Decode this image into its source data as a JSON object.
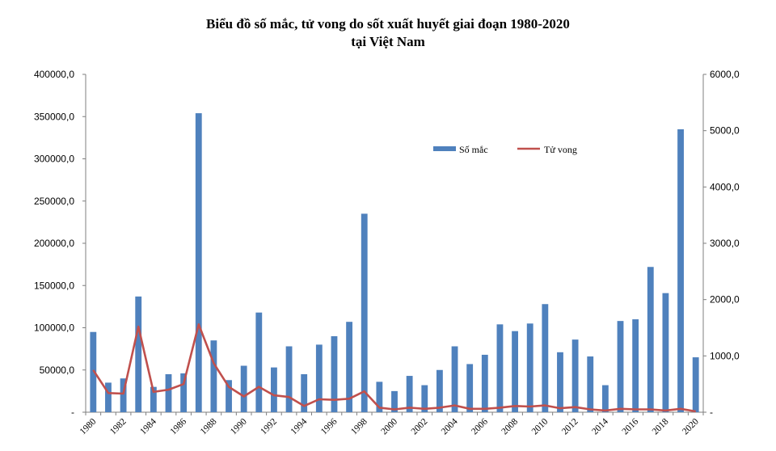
{
  "chart_data": {
    "type": "bar",
    "title": "Biểu đồ số mắc, tử vong do sốt xuất huyết giai đoạn 1980-2020",
    "subtitle": "tại Việt Nam",
    "x": [
      1980,
      1981,
      1982,
      1983,
      1984,
      1985,
      1986,
      1987,
      1988,
      1989,
      1990,
      1991,
      1992,
      1993,
      1994,
      1995,
      1996,
      1997,
      1998,
      1999,
      2000,
      2001,
      2002,
      2003,
      2004,
      2005,
      2006,
      2007,
      2008,
      2009,
      2010,
      2011,
      2012,
      2013,
      2014,
      2015,
      2016,
      2017,
      2018,
      2019,
      2020
    ],
    "x_tick_labels": [
      "1980",
      "1982",
      "1984",
      "1986",
      "1988",
      "1990",
      "1992",
      "1994",
      "1996",
      "1998",
      "2000",
      "2002",
      "2004",
      "2006",
      "2008",
      "2010",
      "2012",
      "2014",
      "2016",
      "2018",
      "2020"
    ],
    "series": [
      {
        "name": "Số mắc",
        "kind": "bar",
        "axis": "left",
        "color": "#4F81BD",
        "values": [
          95000,
          35000,
          40000,
          137000,
          30000,
          45000,
          46000,
          354000,
          85000,
          38000,
          55000,
          118000,
          53000,
          78000,
          45000,
          80000,
          90000,
          107000,
          235000,
          36000,
          25000,
          43000,
          32000,
          50000,
          78000,
          57000,
          68000,
          104000,
          96000,
          105000,
          128000,
          71000,
          86000,
          66000,
          32000,
          108000,
          110000,
          172000,
          141000,
          335000,
          65000
        ]
      },
      {
        "name": "Tử vong",
        "kind": "line",
        "axis": "right",
        "color": "#C0504D",
        "values": [
          750,
          340,
          330,
          1520,
          360,
          400,
          500,
          1560,
          870,
          450,
          280,
          450,
          300,
          270,
          110,
          230,
          220,
          240,
          370,
          80,
          50,
          80,
          60,
          80,
          120,
          60,
          60,
          80,
          110,
          100,
          120,
          70,
          90,
          50,
          30,
          60,
          50,
          50,
          30,
          60,
          15
        ]
      }
    ],
    "y_left": {
      "min": 0,
      "max": 400000,
      "step": 50000,
      "tick_labels": [
        "-",
        "50000,0",
        "100000,0",
        "150000,0",
        "200000,0",
        "250000,0",
        "300000,0",
        "350000,0",
        "400000,0"
      ]
    },
    "y_right": {
      "min": 0,
      "max": 6000,
      "step": 1000,
      "tick_labels": [
        "-",
        "1000,0",
        "2000,0",
        "3000,0",
        "4000,0",
        "5000,0",
        "6000,0"
      ]
    },
    "legend_position": "upper-right inside plot",
    "grid": false
  }
}
